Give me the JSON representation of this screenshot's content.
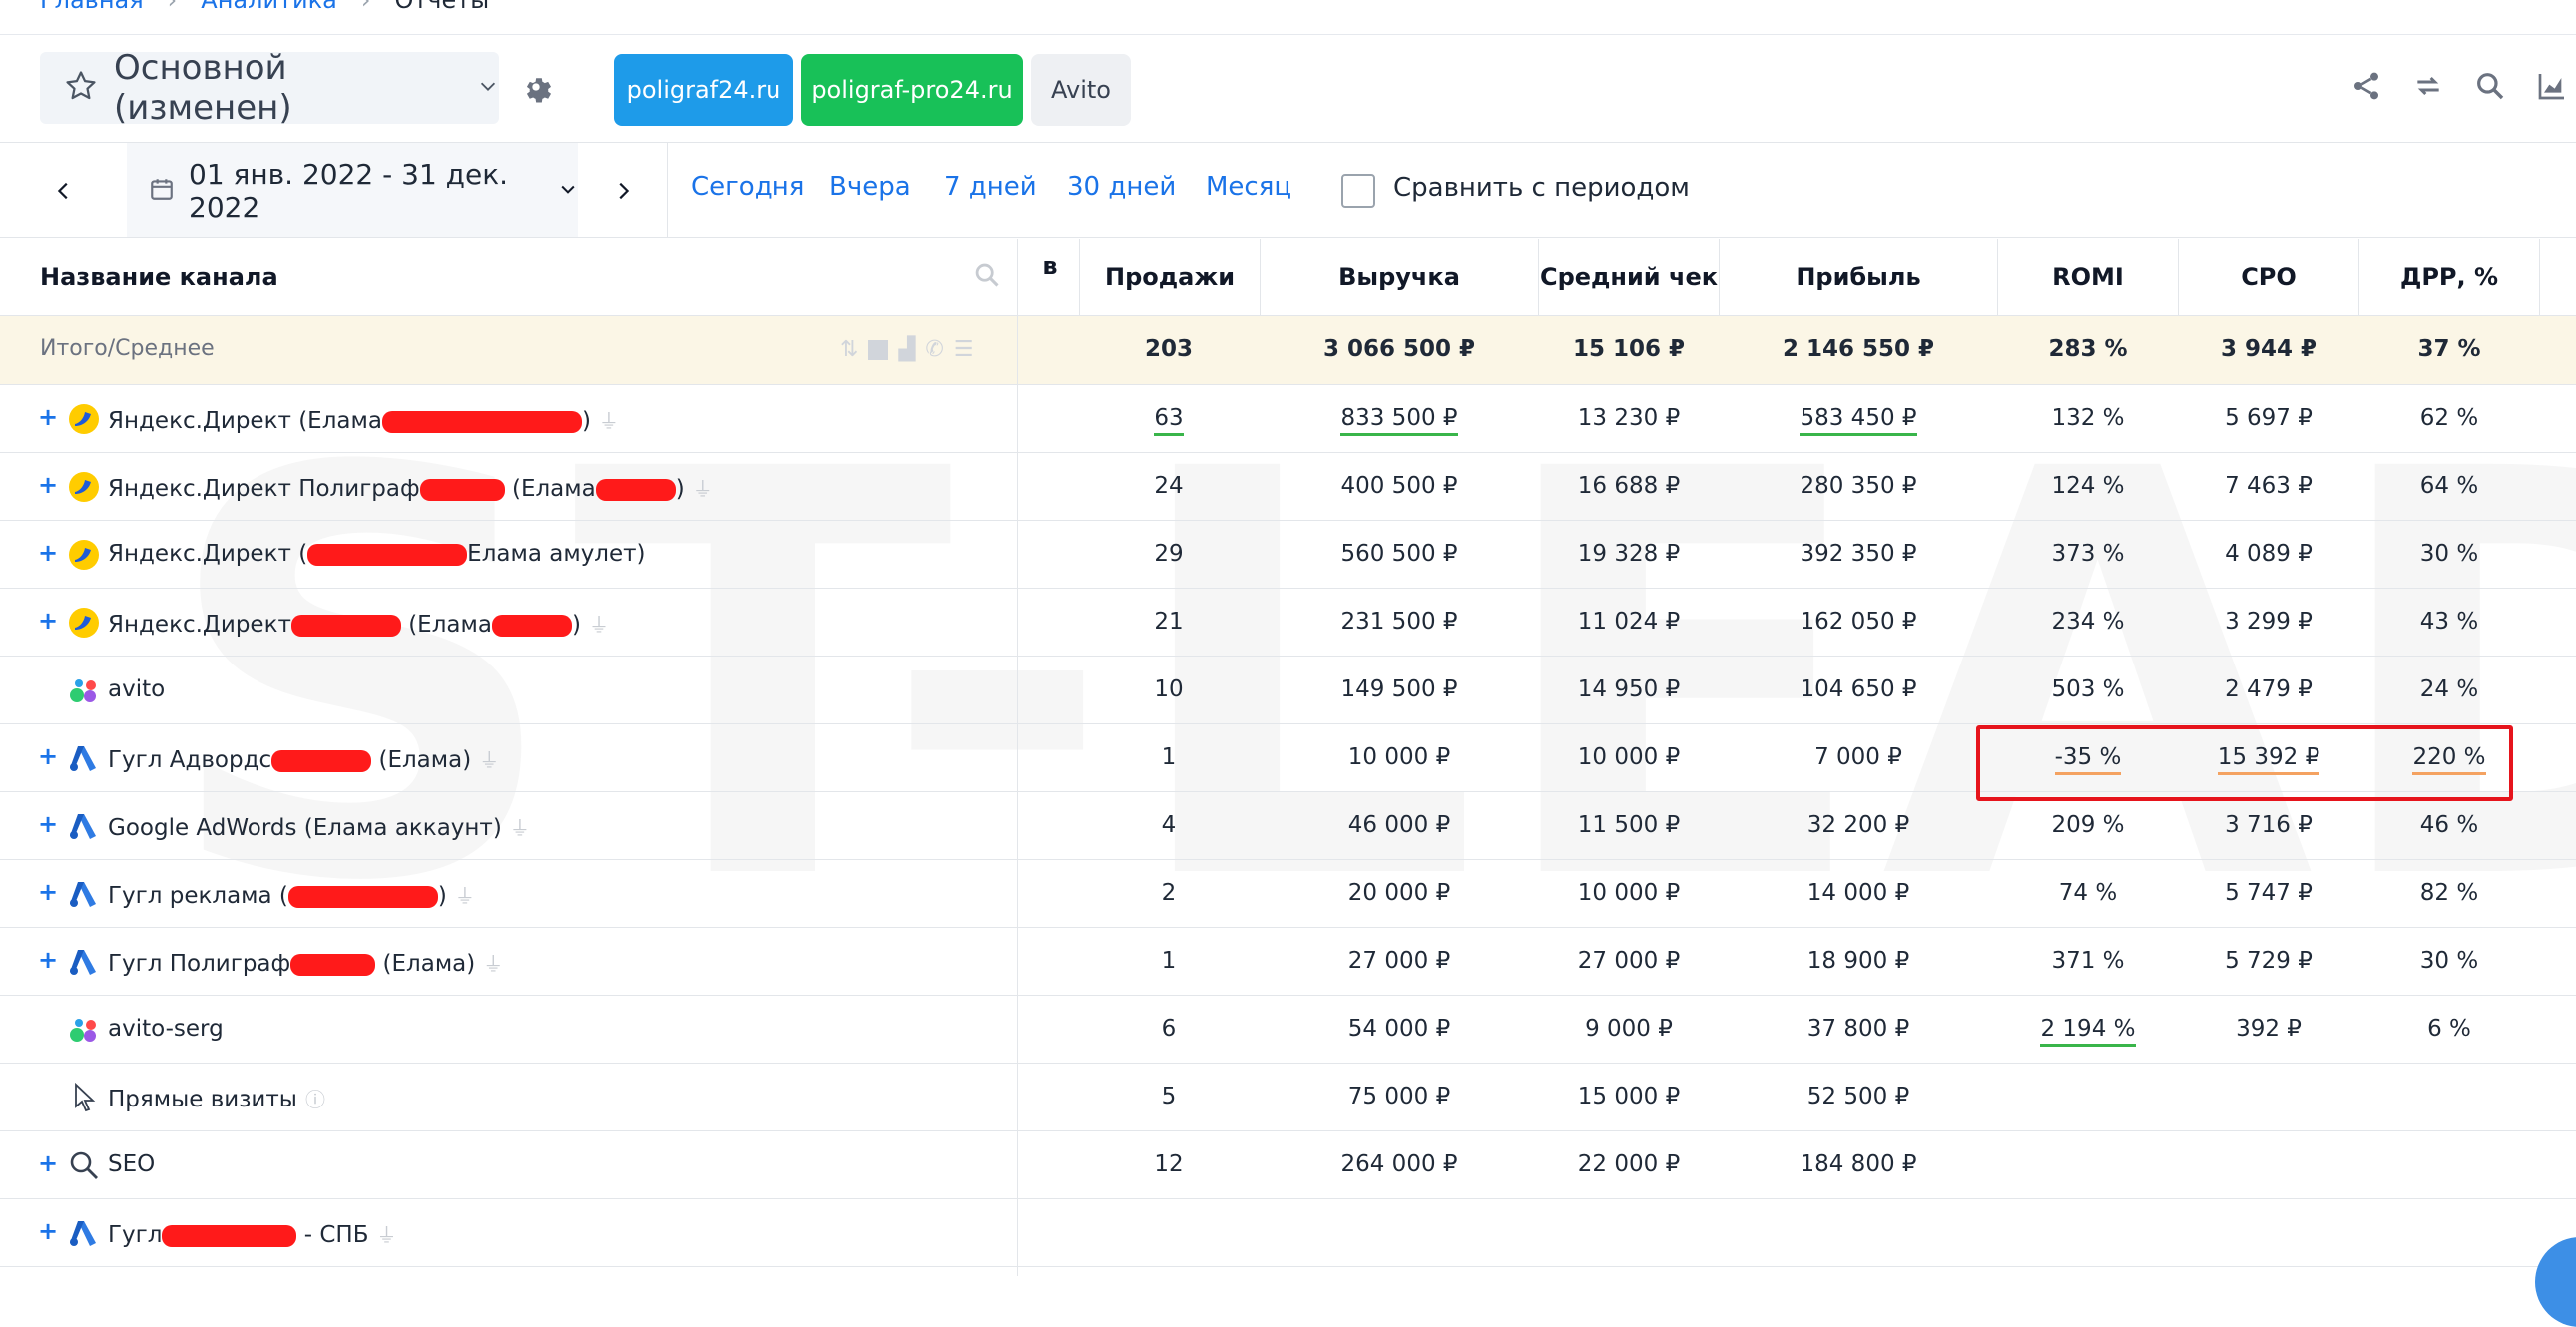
{
  "breadcrumb": {
    "home": "Главная",
    "section": "Аналитика",
    "current": "Отчеты"
  },
  "report": {
    "title": "Основной (изменен)"
  },
  "projects": [
    "poligraf24.ru",
    "poligraf-pro24.ru",
    "Avito"
  ],
  "colors": {
    "blue_chip": "#1e9be9",
    "green_chip": "#18c158",
    "highlight": "#e6141c",
    "link": "#1a73e8"
  },
  "date": {
    "range": "01 янв. 2022 - 31 дек. 2022"
  },
  "quick_ranges": [
    "Сегодня",
    "Вчера",
    "7 дней",
    "30 дней",
    "Месяц"
  ],
  "compare": {
    "label": "Сравнить с периодом",
    "checked": false
  },
  "table": {
    "name_header": "Название канала",
    "partial_header": "в",
    "headers": [
      "Продажи",
      "Выручка",
      "Средний чек",
      "Прибыль",
      "ROMI",
      "CPO",
      "ДРР, %"
    ],
    "total": {
      "label": "Итого/Среднее",
      "values": [
        "203",
        "3 066 500 ₽",
        "15 106 ₽",
        "2 146 550 ₽",
        "283 %",
        "3 944 ₽",
        "37 %"
      ]
    },
    "rows": [
      {
        "expand": true,
        "icon": "yandex-direct-icon",
        "name": "Яндекс.Директ (Елама",
        "suffix": ")",
        "redact": 200,
        "plug": true,
        "values": [
          "63",
          "833 500 ₽",
          "13 230 ₽",
          "583 450 ₽",
          "132 %",
          "5 697 ₽",
          "62 %"
        ],
        "underline": {
          "0": "green",
          "1": "green",
          "3": "green"
        }
      },
      {
        "expand": true,
        "icon": "yandex-direct-icon",
        "name": "Яндекс.Директ Полиграф",
        "suffix": " (Елама",
        "suffix2": ")",
        "redact": 85,
        "redact2": 80,
        "plug": true,
        "values": [
          "24",
          "400 500 ₽",
          "16 688 ₽",
          "280 350 ₽",
          "124 %",
          "7 463 ₽",
          "64 %"
        ]
      },
      {
        "expand": true,
        "icon": "yandex-direct-icon",
        "name": "Яндекс.Директ (",
        "suffix": "Елама амулет)",
        "redact": 160,
        "plug": false,
        "values": [
          "29",
          "560 500 ₽",
          "19 328 ₽",
          "392 350 ₽",
          "373 %",
          "4 089 ₽",
          "30 %"
        ]
      },
      {
        "expand": true,
        "icon": "yandex-direct-icon",
        "name": "Яндекс.Директ",
        "suffix": " (Елама",
        "suffix2": ")",
        "redact": 110,
        "redact2": 80,
        "plug": true,
        "values": [
          "21",
          "231 500 ₽",
          "11 024 ₽",
          "162 050 ₽",
          "234 %",
          "3 299 ₽",
          "43 %"
        ]
      },
      {
        "expand": false,
        "icon": "avito-icon",
        "name": "avito",
        "plug": false,
        "values": [
          "10",
          "149 500 ₽",
          "14 950 ₽",
          "104 650 ₽",
          "503 %",
          "2 479 ₽",
          "24 %"
        ]
      },
      {
        "expand": true,
        "icon": "google-ads-icon",
        "name": "Гугл Адвордс",
        "suffix": " (Елама)",
        "redact": 100,
        "plug": true,
        "values": [
          "1",
          "10 000 ₽",
          "10 000 ₽",
          "7 000 ₽",
          "-35 %",
          "15 392 ₽",
          "220 %"
        ],
        "underline": {
          "4": "orange",
          "5": "orange",
          "6": "orange"
        }
      },
      {
        "expand": true,
        "icon": "google-ads-icon",
        "name": "Google AdWords (Елама аккаунт)",
        "plug": true,
        "values": [
          "4",
          "46 000 ₽",
          "11 500 ₽",
          "32 200 ₽",
          "209 %",
          "3 716 ₽",
          "46 %"
        ]
      },
      {
        "expand": true,
        "icon": "google-ads-icon",
        "name": "Гугл реклама (",
        "suffix": ")",
        "redact": 150,
        "plug": true,
        "values": [
          "2",
          "20 000 ₽",
          "10 000 ₽",
          "14 000 ₽",
          "74 %",
          "5 747 ₽",
          "82 %"
        ]
      },
      {
        "expand": true,
        "icon": "google-ads-icon",
        "name": "Гугл Полиграф",
        "suffix": " (Елама)",
        "redact": 85,
        "plug": true,
        "values": [
          "1",
          "27 000 ₽",
          "27 000 ₽",
          "18 900 ₽",
          "371 %",
          "5 729 ₽",
          "30 %"
        ]
      },
      {
        "expand": false,
        "icon": "avito-icon",
        "name": "avito-serg",
        "plug": false,
        "values": [
          "6",
          "54 000 ₽",
          "9 000 ₽",
          "37 800 ₽",
          "2 194 %",
          "392 ₽",
          "6 %"
        ],
        "underline": {
          "4": "green"
        }
      },
      {
        "expand": false,
        "icon": "cursor-icon",
        "name": "Прямые визиты",
        "help": true,
        "plug": false,
        "values": [
          "5",
          "75 000 ₽",
          "15 000 ₽",
          "52 500 ₽",
          "",
          "",
          ""
        ]
      },
      {
        "expand": true,
        "icon": "search-icon",
        "name": "SEO",
        "plug": false,
        "values": [
          "12",
          "264 000 ₽",
          "22 000 ₽",
          "184 800 ₽",
          "",
          "",
          ""
        ]
      },
      {
        "expand": true,
        "icon": "google-ads-icon",
        "name": "Гугл",
        "suffix": " - СПБ",
        "redact": 135,
        "plug": true,
        "values": [
          "",
          "",
          "",
          "",
          "",
          "",
          ""
        ]
      }
    ]
  }
}
